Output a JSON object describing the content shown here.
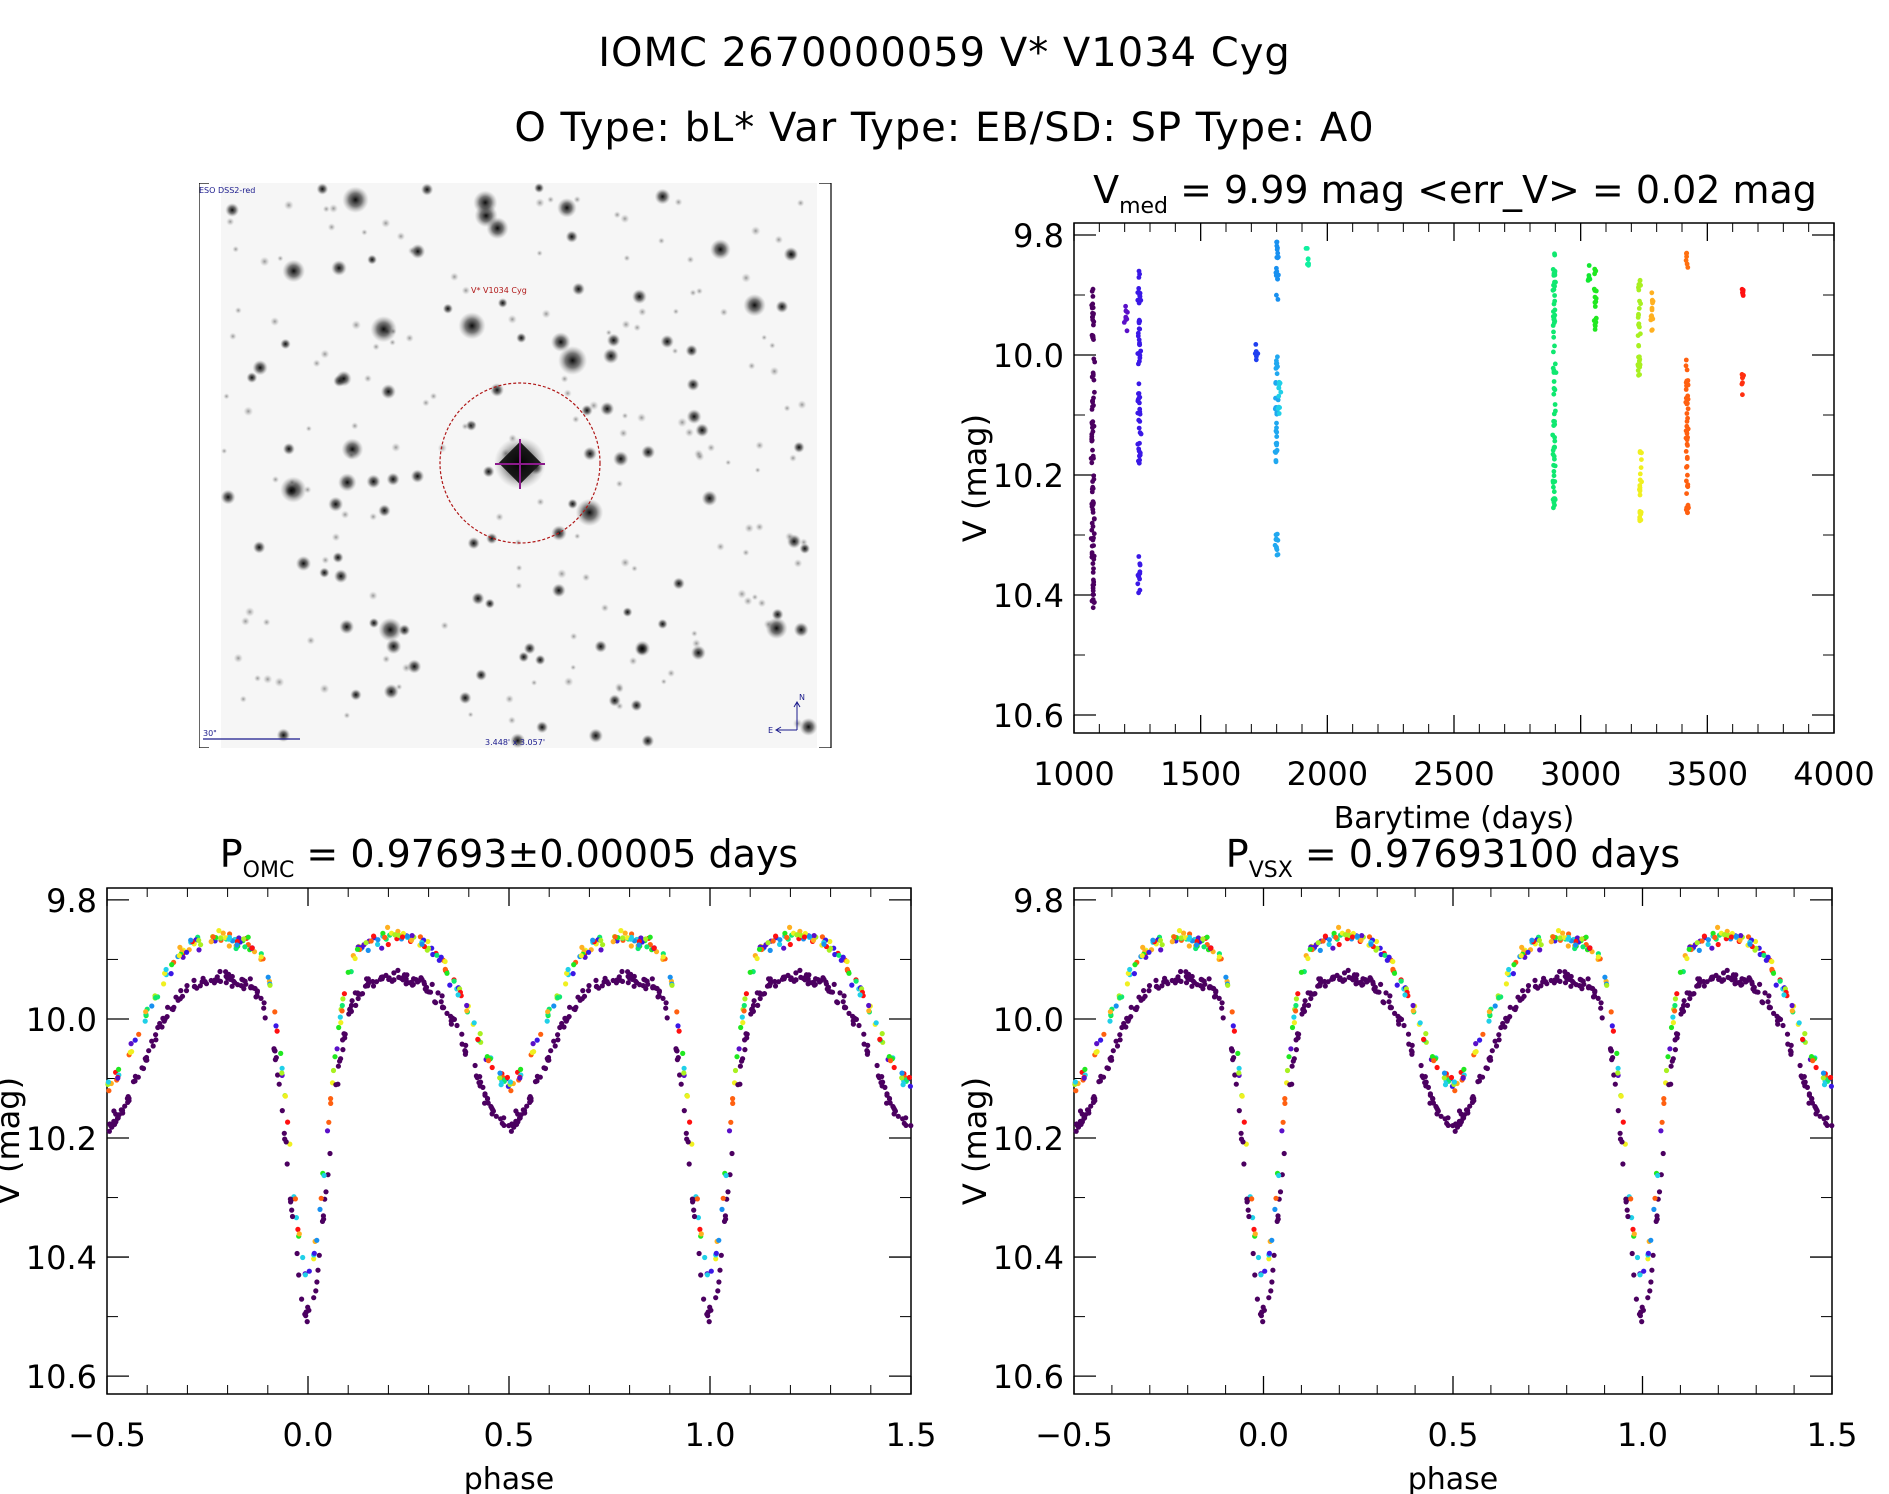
{
  "header": {
    "title_line1": "IOMC 2670000059    V* V1034 Cyg",
    "title_line2": "O Type: bL*  Var Type: EB/SD:  SP Type: A0"
  },
  "sky_image": {
    "survey_label": "ESO DSS2-red",
    "target_label": "V* V1034 Cyg",
    "scale_label": "30\"",
    "fov_label": "3.448' x 3.057'",
    "compass_north": "N",
    "compass_east": "E",
    "colors": {
      "annotation": "#1a1a8c",
      "target": "#b01818",
      "crosshair": "#8b1a8b"
    }
  },
  "chart_data": [
    {
      "id": "lightcurve",
      "type": "scatter",
      "title_prefix": "V",
      "title_sub": "med",
      "title_rest": " = 9.99 mag <err_V> = 0.02 mag",
      "xlabel": "Barytime (days)",
      "ylabel": "V (mag)",
      "xlim": [
        1000,
        4000
      ],
      "ylim": [
        10.63,
        9.78
      ],
      "y_inverted": true,
      "xticks": [
        1000,
        1500,
        2000,
        2500,
        3000,
        3500,
        4000
      ],
      "xtick_labels": [
        "1000",
        "1500",
        "2000",
        "2500",
        "3000",
        "3500",
        "4000"
      ],
      "yticks": [
        9.8,
        10.0,
        10.2,
        10.4,
        10.6
      ],
      "ytick_labels": [
        "9.8",
        "10.0",
        "10.2",
        "10.4",
        "10.6"
      ],
      "grid": false,
      "colorscale": "rainbow by observation time (purple early → red late)",
      "groups": [
        {
          "x": 1075,
          "color": "#4b0060",
          "ymin": 9.87,
          "ymax": 10.43
        },
        {
          "x": 1205,
          "color": "#5a10c8",
          "ymin": 9.91,
          "ymax": 9.96
        },
        {
          "x": 1258,
          "color": "#3a18e6",
          "ymin": 9.85,
          "ymax": 10.19
        },
        {
          "x": 1258,
          "color": "#3a18e6",
          "ymin": 10.33,
          "ymax": 10.4
        },
        {
          "x": 1720,
          "color": "#2040f0",
          "ymin": 9.98,
          "ymax": 10.01
        },
        {
          "x": 1800,
          "color": "#1890f0",
          "ymin": 9.81,
          "ymax": 9.91
        },
        {
          "x": 1800,
          "color": "#20a8f0",
          "ymin": 9.99,
          "ymax": 10.18
        },
        {
          "x": 1810,
          "color": "#20d0e8",
          "ymin": 10.04,
          "ymax": 10.1
        },
        {
          "x": 1800,
          "color": "#20a8f0",
          "ymin": 10.28,
          "ymax": 10.35
        },
        {
          "x": 1920,
          "color": "#10f0a0",
          "ymin": 9.82,
          "ymax": 9.86
        },
        {
          "x": 2895,
          "color": "#10e870",
          "ymin": 9.83,
          "ymax": 10.26
        },
        {
          "x": 3030,
          "color": "#10e830",
          "ymin": 9.85,
          "ymax": 9.88
        },
        {
          "x": 3058,
          "color": "#20e820",
          "ymin": 9.85,
          "ymax": 9.96
        },
        {
          "x": 3230,
          "color": "#a8f020",
          "ymin": 9.87,
          "ymax": 10.04
        },
        {
          "x": 3235,
          "color": "#f0f020",
          "ymin": 10.16,
          "ymax": 10.28
        },
        {
          "x": 3280,
          "color": "#ffb020",
          "ymin": 9.89,
          "ymax": 9.97
        },
        {
          "x": 3420,
          "color": "#ff7010",
          "ymin": 9.83,
          "ymax": 9.86
        },
        {
          "x": 3420,
          "color": "#ff6010",
          "ymin": 10.0,
          "ymax": 10.27
        },
        {
          "x": 3640,
          "color": "#ff1010",
          "ymin": 9.89,
          "ymax": 9.91
        },
        {
          "x": 3640,
          "color": "#ff3010",
          "ymin": 10.03,
          "ymax": 10.07
        }
      ]
    },
    {
      "id": "phase_omc",
      "type": "scatter",
      "title_prefix": "P",
      "title_sub": "OMC",
      "title_rest": " = 0.97693±0.00005 days",
      "xlabel": "phase",
      "ylabel": "V (mag)",
      "xlim": [
        -0.5,
        1.5
      ],
      "ylim": [
        10.63,
        9.78
      ],
      "y_inverted": true,
      "xticks": [
        -0.5,
        0.0,
        0.5,
        1.0,
        1.5
      ],
      "xtick_labels": [
        "−0.5",
        "0.0",
        "0.5",
        "1.0",
        "1.5"
      ],
      "yticks": [
        9.8,
        10.0,
        10.2,
        10.4,
        10.6
      ],
      "ytick_labels": [
        "9.8",
        "10.0",
        "10.2",
        "10.4",
        "10.6"
      ],
      "grid": false,
      "period_days": 0.97693,
      "period_error_days": 5e-05,
      "curve_model": {
        "primary_min_phase": 0.0,
        "primary_min_mag": 10.4,
        "secondary_min_phase": 0.5,
        "secondary_min_mag": 10.08,
        "max_mag": 9.88,
        "max_phases": [
          0.25,
          0.75
        ]
      }
    },
    {
      "id": "phase_vsx",
      "type": "scatter",
      "title_prefix": "P",
      "title_sub": "VSX",
      "title_rest": " = 0.97693100 days",
      "xlabel": "phase",
      "ylabel": "V (mag)",
      "xlim": [
        -0.5,
        1.5
      ],
      "ylim": [
        10.63,
        9.78
      ],
      "y_inverted": true,
      "xticks": [
        -0.5,
        0.0,
        0.5,
        1.0,
        1.5
      ],
      "xtick_labels": [
        "−0.5",
        "0.0",
        "0.5",
        "1.0",
        "1.5"
      ],
      "yticks": [
        9.8,
        10.0,
        10.2,
        10.4,
        10.6
      ],
      "ytick_labels": [
        "9.8",
        "10.0",
        "10.2",
        "10.4",
        "10.6"
      ],
      "grid": false,
      "period_days": 0.976931,
      "curve_model": {
        "primary_min_phase": 0.0,
        "primary_min_mag": 10.4,
        "secondary_min_phase": 0.5,
        "secondary_min_mag": 10.08,
        "max_mag": 9.88,
        "max_phases": [
          0.25,
          0.75
        ]
      }
    }
  ],
  "palette": [
    "#4b0060",
    "#5a10c8",
    "#3a18e6",
    "#1890f0",
    "#20d0e8",
    "#10e870",
    "#20e820",
    "#a8f020",
    "#f0f020",
    "#ffb020",
    "#ff6010",
    "#ff1010"
  ]
}
